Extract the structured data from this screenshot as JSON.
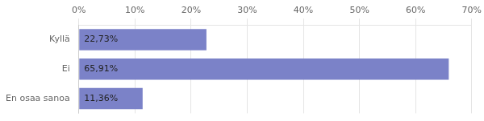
{
  "chart_data": {
    "type": "bar",
    "orientation": "horizontal",
    "categories": [
      "Kyllä",
      "Ei",
      "En osaa sanoa"
    ],
    "values": [
      22.73,
      65.91,
      11.36
    ],
    "value_labels": [
      "22,73%",
      "65,91%",
      "11,36%"
    ],
    "data_labels": true,
    "color": "#7b82c8",
    "xlim": [
      0,
      70
    ],
    "xticks": [
      {
        "value": 0,
        "label": "0%"
      },
      {
        "value": 10,
        "label": "10%"
      },
      {
        "value": 20,
        "label": "20%"
      },
      {
        "value": 30,
        "label": "30%"
      },
      {
        "value": 40,
        "label": "40%"
      },
      {
        "value": 50,
        "label": "50%"
      },
      {
        "value": 60,
        "label": "60%"
      },
      {
        "value": 70,
        "label": "70%"
      }
    ],
    "grid": true
  }
}
